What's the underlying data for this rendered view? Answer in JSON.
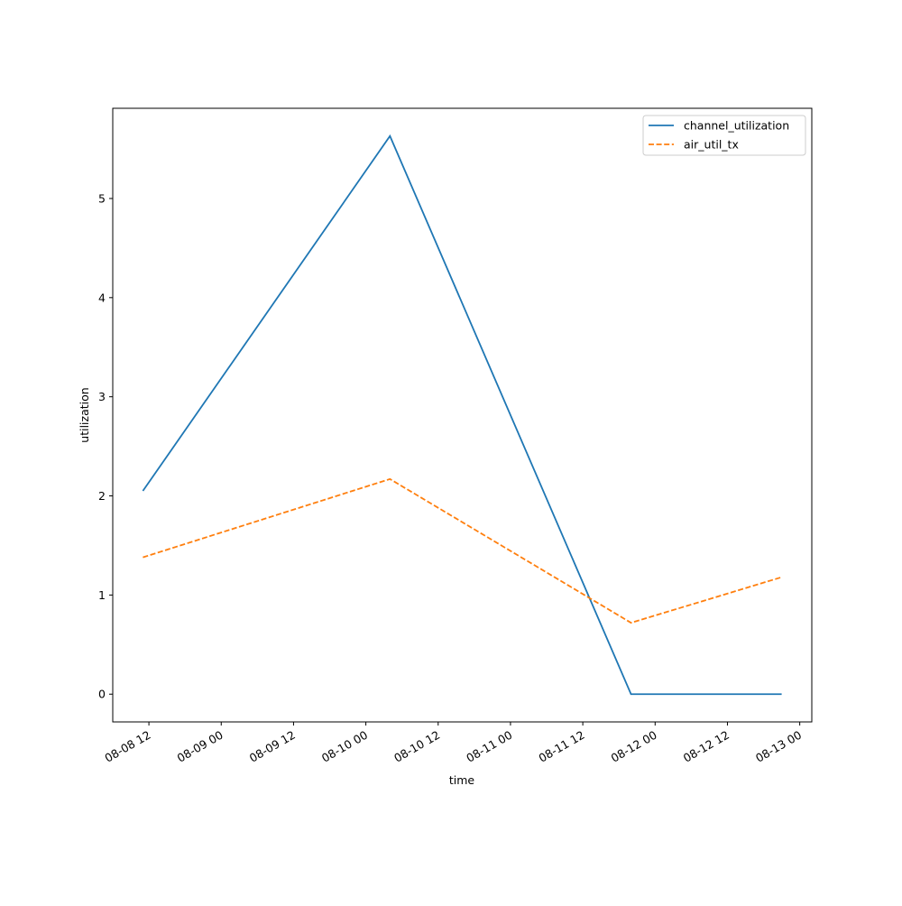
{
  "chart_data": {
    "type": "line",
    "x": [
      "08-08 11",
      "08-10 04",
      "08-11 20",
      "08-12 21"
    ],
    "series": [
      {
        "name": "channel_utilization",
        "color": "#1f77b4",
        "dash": "solid",
        "values": [
          2.05,
          5.63,
          0,
          0
        ]
      },
      {
        "name": "air_util_tx",
        "color": "#ff7f0e",
        "dash": "dashed",
        "values": [
          1.38,
          2.17,
          0.72,
          1.18
        ]
      }
    ],
    "xlabel": "time",
    "ylabel": "utilization",
    "xlim": [
      "08-08 06",
      "08-13 02"
    ],
    "xticks": [
      "08-08 12",
      "08-09 00",
      "08-09 12",
      "08-10 00",
      "08-10 12",
      "08-11 00",
      "08-11 12",
      "08-12 00",
      "08-12 12",
      "08-13 00"
    ],
    "ylim": [
      -0.28,
      5.91
    ],
    "yticks": [
      0,
      1,
      2,
      3,
      4,
      5
    ],
    "legend": "upper right",
    "grid": false
  }
}
